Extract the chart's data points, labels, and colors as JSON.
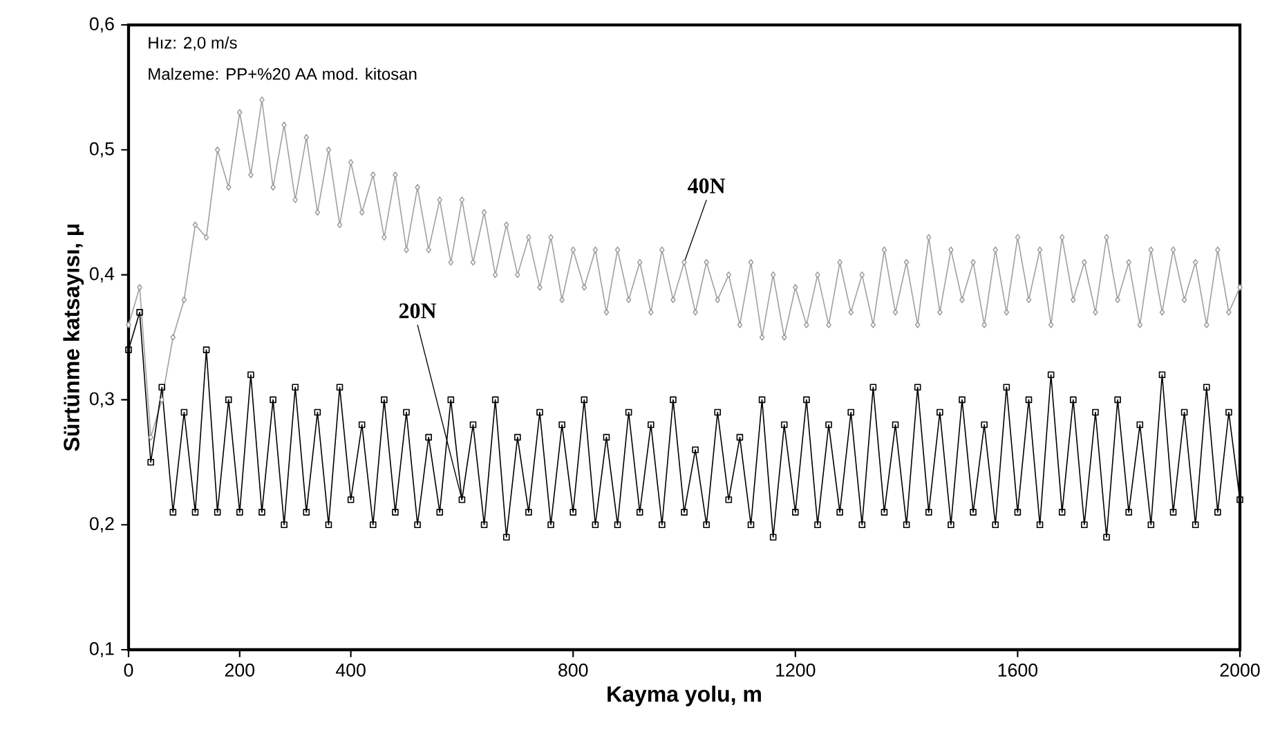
{
  "chart_data": {
    "type": "line",
    "xlabel": "Kayma yolu, m",
    "ylabel": "Sürtünme katsayısı, μ",
    "annotations": [
      "Hız: 2,0 m/s",
      "Malzeme: PP+%20 AA mod. kitosan"
    ],
    "xlim": [
      0,
      2000
    ],
    "xticks": [
      0,
      200,
      400,
      800,
      1200,
      1600,
      2000
    ],
    "ylim": [
      0.1,
      0.6
    ],
    "yticks": [
      {
        "value": 0.1,
        "label": "0,1"
      },
      {
        "value": 0.2,
        "label": "0,2"
      },
      {
        "value": 0.3,
        "label": "0,3"
      },
      {
        "value": 0.4,
        "label": "0,4"
      },
      {
        "value": 0.5,
        "label": "0,5"
      },
      {
        "value": 0.6,
        "label": "0,6"
      }
    ],
    "x": [
      0,
      20,
      40,
      60,
      80,
      100,
      120,
      140,
      160,
      180,
      200,
      220,
      240,
      260,
      280,
      300,
      320,
      340,
      360,
      380,
      400,
      420,
      440,
      460,
      480,
      500,
      520,
      540,
      560,
      580,
      600,
      620,
      640,
      660,
      680,
      700,
      720,
      740,
      760,
      780,
      800,
      820,
      840,
      860,
      880,
      900,
      920,
      940,
      960,
      980,
      1000,
      1020,
      1040,
      1060,
      1080,
      1100,
      1120,
      1140,
      1160,
      1180,
      1200,
      1220,
      1240,
      1260,
      1280,
      1300,
      1320,
      1340,
      1360,
      1380,
      1400,
      1420,
      1440,
      1460,
      1480,
      1500,
      1520,
      1540,
      1560,
      1580,
      1600,
      1620,
      1640,
      1660,
      1680,
      1700,
      1720,
      1740,
      1760,
      1780,
      1800,
      1820,
      1840,
      1860,
      1880,
      1900,
      1920,
      1940,
      1960,
      1980,
      2000
    ],
    "series": [
      {
        "name": "40N",
        "color": "#a0a0a0",
        "marker": "diamond",
        "values": [
          0.36,
          0.39,
          0.27,
          0.3,
          0.35,
          0.38,
          0.44,
          0.43,
          0.5,
          0.47,
          0.53,
          0.48,
          0.54,
          0.47,
          0.52,
          0.46,
          0.51,
          0.45,
          0.5,
          0.44,
          0.49,
          0.45,
          0.48,
          0.43,
          0.48,
          0.42,
          0.47,
          0.42,
          0.46,
          0.41,
          0.46,
          0.41,
          0.45,
          0.4,
          0.44,
          0.4,
          0.43,
          0.39,
          0.43,
          0.38,
          0.42,
          0.39,
          0.42,
          0.37,
          0.42,
          0.38,
          0.41,
          0.37,
          0.42,
          0.38,
          0.41,
          0.37,
          0.41,
          0.38,
          0.4,
          0.36,
          0.41,
          0.35,
          0.4,
          0.35,
          0.39,
          0.36,
          0.4,
          0.36,
          0.41,
          0.37,
          0.4,
          0.36,
          0.42,
          0.37,
          0.41,
          0.36,
          0.43,
          0.37,
          0.42,
          0.38,
          0.41,
          0.36,
          0.42,
          0.37,
          0.43,
          0.38,
          0.42,
          0.36,
          0.43,
          0.38,
          0.41,
          0.37,
          0.43,
          0.38,
          0.41,
          0.36,
          0.42,
          0.37,
          0.42,
          0.38,
          0.41,
          0.36,
          0.42,
          0.37,
          0.39
        ]
      },
      {
        "name": "20N",
        "color": "#000000",
        "marker": "square",
        "values": [
          0.34,
          0.37,
          0.25,
          0.31,
          0.21,
          0.29,
          0.21,
          0.34,
          0.21,
          0.3,
          0.21,
          0.32,
          0.21,
          0.3,
          0.2,
          0.31,
          0.21,
          0.29,
          0.2,
          0.31,
          0.22,
          0.28,
          0.2,
          0.3,
          0.21,
          0.29,
          0.2,
          0.27,
          0.21,
          0.3,
          0.22,
          0.28,
          0.2,
          0.3,
          0.19,
          0.27,
          0.21,
          0.29,
          0.2,
          0.28,
          0.21,
          0.3,
          0.2,
          0.27,
          0.2,
          0.29,
          0.21,
          0.28,
          0.2,
          0.3,
          0.21,
          0.26,
          0.2,
          0.29,
          0.22,
          0.27,
          0.2,
          0.3,
          0.19,
          0.28,
          0.21,
          0.3,
          0.2,
          0.28,
          0.21,
          0.29,
          0.2,
          0.31,
          0.21,
          0.28,
          0.2,
          0.31,
          0.21,
          0.29,
          0.2,
          0.3,
          0.21,
          0.28,
          0.2,
          0.31,
          0.21,
          0.3,
          0.2,
          0.32,
          0.21,
          0.3,
          0.2,
          0.29,
          0.19,
          0.3,
          0.21,
          0.28,
          0.2,
          0.32,
          0.21,
          0.29,
          0.2,
          0.31,
          0.21,
          0.29,
          0.22
        ]
      }
    ]
  }
}
